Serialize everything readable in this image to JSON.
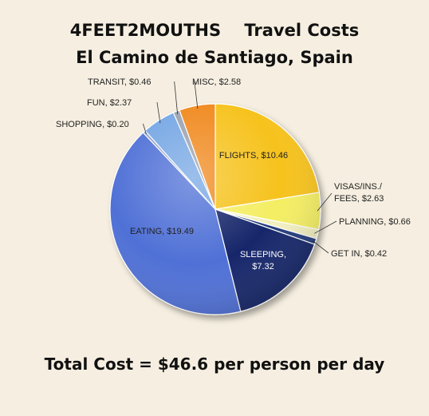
{
  "header": {
    "brand": "4FEET2MOUTHS",
    "title": "Travel Costs",
    "subtitle": "El Camino de Santiago, Spain"
  },
  "footer": {
    "total_text": "Total Cost = $46.6 per person per day"
  },
  "chart_data": {
    "type": "pie",
    "title": "4FEET2MOUTHS Travel Costs El Camino de Santiago, Spain",
    "currency": "$",
    "slices": [
      {
        "label": "FLIGHTS",
        "value": 10.46,
        "color": "#f6c21a"
      },
      {
        "label": "VISAS/INS./ FEES",
        "value": 2.63,
        "color": "#f4ee63"
      },
      {
        "label": "PLANNING",
        "value": 0.66,
        "color": "#f2efbf"
      },
      {
        "label": "GET IN",
        "value": 0.42,
        "color": "#233a7c"
      },
      {
        "label": "SLEEPING",
        "value": 7.32,
        "color": "#14286a"
      },
      {
        "label": "EATING",
        "value": 19.49,
        "color": "#4f70d6"
      },
      {
        "label": "SHOPPING",
        "value": 0.2,
        "color": "#8fa0c8"
      },
      {
        "label": "FUN",
        "value": 2.37,
        "color": "#74a6e4"
      },
      {
        "label": "TRANSIT",
        "value": 0.46,
        "color": "#9aa2b0"
      },
      {
        "label": "MISC",
        "value": 2.58,
        "color": "#f0881a"
      }
    ]
  }
}
